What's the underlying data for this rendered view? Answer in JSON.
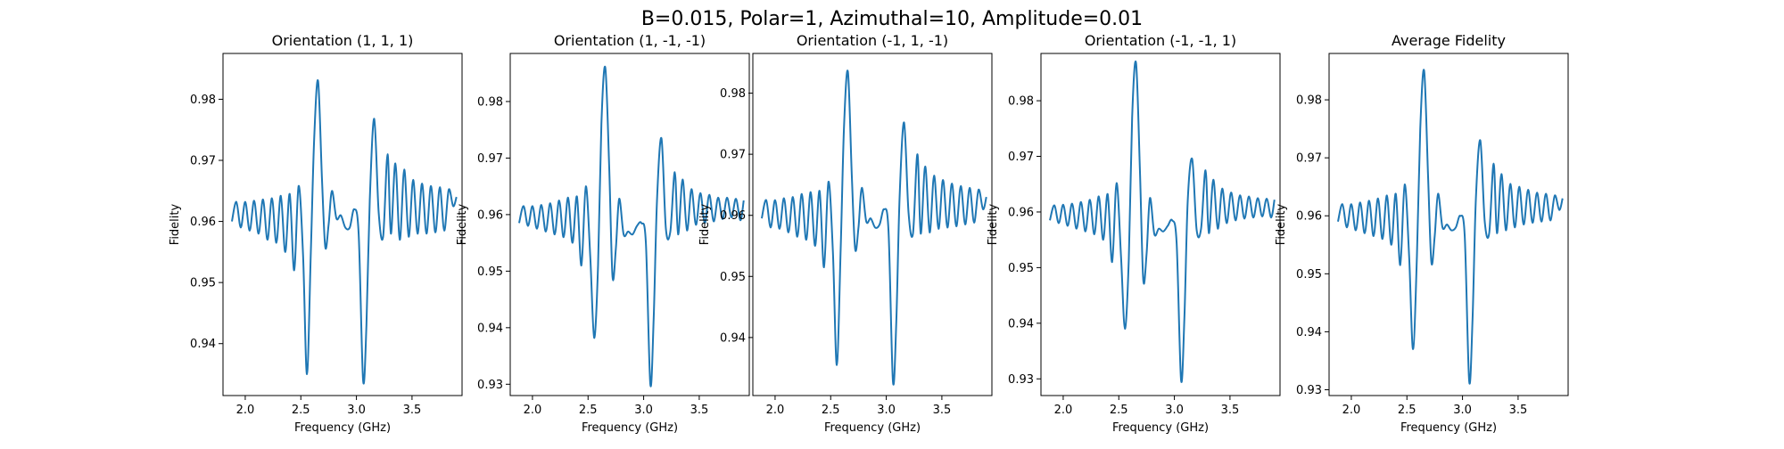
{
  "figure": {
    "suptitle": "B=0.015, Polar=1, Azimuthal=10, Amplitude=0.01"
  },
  "chart_data": [
    {
      "type": "line",
      "title": "Orientation (1, 1, 1)",
      "xlabel": "Frequency (GHz)",
      "ylabel": "Fidelity",
      "xlim": [
        1.8,
        3.95
      ],
      "ylim": [
        0.9315,
        0.9875
      ],
      "xticks": [
        2.0,
        2.5,
        3.0,
        3.5
      ],
      "xtick_labels": [
        "2.0",
        "2.5",
        "3.0",
        "3.5"
      ],
      "yticks": [
        0.94,
        0.95,
        0.96,
        0.97,
        0.98
      ],
      "ytick_labels": [
        "0.94",
        "0.95",
        "0.96",
        "0.97",
        "0.98"
      ],
      "line_color": "#1f77b4",
      "series": [
        {
          "x": [
            1.88,
            1.92,
            1.96,
            2.0,
            2.04,
            2.08,
            2.12,
            2.16,
            2.2,
            2.24,
            2.28,
            2.32,
            2.36,
            2.4,
            2.44,
            2.48,
            2.52,
            2.555,
            2.59,
            2.62,
            2.655,
            2.69,
            2.72,
            2.75,
            2.78,
            2.82,
            2.86,
            2.9,
            2.94,
            2.98,
            3.02,
            3.06,
            3.09,
            3.12,
            3.16,
            3.2,
            3.24,
            3.28,
            3.31,
            3.35,
            3.39,
            3.43,
            3.47,
            3.51,
            3.55,
            3.59,
            3.63,
            3.67,
            3.71,
            3.75,
            3.79,
            3.83,
            3.87,
            3.9
          ],
          "y": [
            0.96,
            0.9632,
            0.959,
            0.9632,
            0.9585,
            0.9634,
            0.958,
            0.9636,
            0.957,
            0.9638,
            0.9565,
            0.9642,
            0.955,
            0.9645,
            0.952,
            0.9658,
            0.9545,
            0.935,
            0.955,
            0.9735,
            0.983,
            0.967,
            0.9558,
            0.9595,
            0.965,
            0.9605,
            0.961,
            0.959,
            0.959,
            0.962,
            0.958,
            0.934,
            0.943,
            0.9635,
            0.9768,
            0.9615,
            0.9575,
            0.971,
            0.958,
            0.9695,
            0.957,
            0.9685,
            0.9575,
            0.9668,
            0.958,
            0.9662,
            0.958,
            0.9658,
            0.9582,
            0.9656,
            0.9585,
            0.9652,
            0.9625,
            0.964
          ]
        }
      ]
    },
    {
      "type": "line",
      "title": "Orientation (1, -1, -1)",
      "xlabel": "Frequency (GHz)",
      "ylabel": "Fidelity",
      "xlim": [
        1.8,
        3.95
      ],
      "ylim": [
        0.928,
        0.9885
      ],
      "xticks": [
        2.0,
        2.5,
        3.0,
        3.5
      ],
      "xtick_labels": [
        "2.0",
        "2.5",
        "3.0",
        "3.5"
      ],
      "yticks": [
        0.93,
        0.94,
        0.95,
        0.96,
        0.97,
        0.98
      ],
      "ytick_labels": [
        "0.93",
        "0.94",
        "0.95",
        "0.96",
        "0.97",
        "0.98"
      ],
      "line_color": "#1f77b4",
      "series": [
        {
          "x": [
            1.88,
            1.92,
            1.96,
            2.0,
            2.04,
            2.08,
            2.12,
            2.16,
            2.2,
            2.24,
            2.28,
            2.32,
            2.36,
            2.4,
            2.44,
            2.48,
            2.52,
            2.555,
            2.59,
            2.62,
            2.655,
            2.69,
            2.72,
            2.75,
            2.78,
            2.82,
            2.86,
            2.9,
            2.94,
            2.98,
            3.02,
            3.06,
            3.09,
            3.12,
            3.16,
            3.2,
            3.24,
            3.28,
            3.31,
            3.35,
            3.39,
            3.43,
            3.47,
            3.51,
            3.55,
            3.59,
            3.63,
            3.67,
            3.71,
            3.75,
            3.79,
            3.83,
            3.87,
            3.9
          ],
          "y": [
            0.9585,
            0.9615,
            0.958,
            0.9615,
            0.9575,
            0.9617,
            0.957,
            0.962,
            0.9565,
            0.9625,
            0.956,
            0.963,
            0.955,
            0.9632,
            0.951,
            0.965,
            0.9525,
            0.9382,
            0.951,
            0.976,
            0.986,
            0.9685,
            0.949,
            0.954,
            0.9628,
            0.9565,
            0.957,
            0.9565,
            0.958,
            0.9585,
            0.955,
            0.93,
            0.9415,
            0.9625,
            0.9735,
            0.9575,
            0.957,
            0.9675,
            0.9565,
            0.9662,
            0.9572,
            0.9645,
            0.9582,
            0.9638,
            0.9585,
            0.9635,
            0.9588,
            0.963,
            0.9592,
            0.963,
            0.9595,
            0.9628,
            0.959,
            0.9625
          ]
        }
      ]
    },
    {
      "type": "line",
      "title": "Orientation (-1, 1, -1)",
      "xlabel": "Frequency (GHz)",
      "ylabel": "Fidelity",
      "xlim": [
        1.8,
        3.95
      ],
      "ylim": [
        0.9305,
        0.9865
      ],
      "xticks": [
        2.0,
        2.5,
        3.0,
        3.5
      ],
      "xtick_labels": [
        "2.0",
        "2.5",
        "3.0",
        "3.5"
      ],
      "yticks": [
        0.94,
        0.95,
        0.96,
        0.97,
        0.98
      ],
      "ytick_labels": [
        "0.94",
        "0.95",
        "0.96",
        "0.97",
        "0.98"
      ],
      "line_color": "#1f77b4",
      "series": [
        {
          "x": [
            1.88,
            1.92,
            1.96,
            2.0,
            2.04,
            2.08,
            2.12,
            2.16,
            2.2,
            2.24,
            2.28,
            2.32,
            2.36,
            2.4,
            2.44,
            2.48,
            2.52,
            2.555,
            2.59,
            2.62,
            2.655,
            2.69,
            2.72,
            2.75,
            2.78,
            2.82,
            2.86,
            2.9,
            2.94,
            2.98,
            3.02,
            3.06,
            3.09,
            3.12,
            3.16,
            3.2,
            3.24,
            3.28,
            3.31,
            3.35,
            3.39,
            3.43,
            3.47,
            3.51,
            3.55,
            3.59,
            3.63,
            3.67,
            3.71,
            3.75,
            3.79,
            3.83,
            3.87,
            3.9
          ],
          "y": [
            0.9595,
            0.9625,
            0.958,
            0.9625,
            0.9578,
            0.9628,
            0.9572,
            0.963,
            0.9565,
            0.9635,
            0.956,
            0.9638,
            0.955,
            0.964,
            0.9515,
            0.9655,
            0.954,
            0.9355,
            0.9545,
            0.9745,
            0.9835,
            0.9665,
            0.9545,
            0.958,
            0.9645,
            0.959,
            0.9595,
            0.958,
            0.9585,
            0.961,
            0.9575,
            0.9328,
            0.9425,
            0.963,
            0.9752,
            0.9605,
            0.957,
            0.97,
            0.957,
            0.968,
            0.9572,
            0.9665,
            0.9578,
            0.9658,
            0.958,
            0.9652,
            0.9582,
            0.9648,
            0.9585,
            0.9645,
            0.9588,
            0.9642,
            0.961,
            0.963
          ]
        }
      ]
    },
    {
      "type": "line",
      "title": "Orientation (-1, -1, 1)",
      "xlabel": "Frequency (GHz)",
      "ylabel": "Fidelity",
      "xlim": [
        1.8,
        3.95
      ],
      "ylim": [
        0.927,
        0.9885
      ],
      "xticks": [
        2.0,
        2.5,
        3.0,
        3.5
      ],
      "xtick_labels": [
        "2.0",
        "2.5",
        "3.0",
        "3.5"
      ],
      "yticks": [
        0.93,
        0.94,
        0.95,
        0.96,
        0.97,
        0.98
      ],
      "ytick_labels": [
        "0.93",
        "0.94",
        "0.95",
        "0.96",
        "0.97",
        "0.98"
      ],
      "line_color": "#1f77b4",
      "series": [
        {
          "x": [
            1.88,
            1.92,
            1.96,
            2.0,
            2.04,
            2.08,
            2.12,
            2.16,
            2.2,
            2.24,
            2.28,
            2.32,
            2.36,
            2.4,
            2.44,
            2.48,
            2.52,
            2.555,
            2.59,
            2.62,
            2.655,
            2.69,
            2.72,
            2.75,
            2.78,
            2.82,
            2.86,
            2.9,
            2.94,
            2.98,
            3.02,
            3.06,
            3.09,
            3.12,
            3.16,
            3.2,
            3.24,
            3.28,
            3.31,
            3.35,
            3.39,
            3.43,
            3.47,
            3.51,
            3.55,
            3.59,
            3.63,
            3.67,
            3.71,
            3.75,
            3.79,
            3.83,
            3.87,
            3.9
          ],
          "y": [
            0.9585,
            0.9612,
            0.958,
            0.9613,
            0.9575,
            0.9615,
            0.957,
            0.9618,
            0.9565,
            0.9622,
            0.956,
            0.9628,
            0.955,
            0.9632,
            0.951,
            0.9652,
            0.952,
            0.939,
            0.9515,
            0.977,
            0.9868,
            0.9675,
            0.9478,
            0.9525,
            0.9625,
            0.956,
            0.957,
            0.9565,
            0.9575,
            0.9585,
            0.9545,
            0.9298,
            0.941,
            0.962,
            0.9695,
            0.9568,
            0.957,
            0.9675,
            0.9562,
            0.9658,
            0.957,
            0.9642,
            0.958,
            0.9635,
            0.9585,
            0.963,
            0.9588,
            0.9628,
            0.959,
            0.9625,
            0.9592,
            0.9624,
            0.959,
            0.9622
          ]
        }
      ]
    },
    {
      "type": "line",
      "title": "Average Fidelity",
      "xlabel": "Frequency (GHz)",
      "ylabel": "Fidelity",
      "xlim": [
        1.8,
        3.95
      ],
      "ylim": [
        0.929,
        0.988
      ],
      "xticks": [
        2.0,
        2.5,
        3.0,
        3.5
      ],
      "xtick_labels": [
        "2.0",
        "2.5",
        "3.0",
        "3.5"
      ],
      "yticks": [
        0.93,
        0.94,
        0.95,
        0.96,
        0.97,
        0.98
      ],
      "ytick_labels": [
        "0.93",
        "0.94",
        "0.95",
        "0.96",
        "0.97",
        "0.98"
      ],
      "line_color": "#1f77b4",
      "series": [
        {
          "x": [
            1.88,
            1.92,
            1.96,
            2.0,
            2.04,
            2.08,
            2.12,
            2.16,
            2.2,
            2.24,
            2.28,
            2.32,
            2.36,
            2.4,
            2.44,
            2.48,
            2.52,
            2.555,
            2.59,
            2.62,
            2.655,
            2.69,
            2.72,
            2.75,
            2.78,
            2.82,
            2.86,
            2.9,
            2.94,
            2.98,
            3.02,
            3.06,
            3.09,
            3.12,
            3.16,
            3.2,
            3.24,
            3.28,
            3.31,
            3.35,
            3.39,
            3.43,
            3.47,
            3.51,
            3.55,
            3.59,
            3.63,
            3.67,
            3.71,
            3.75,
            3.79,
            3.83,
            3.87,
            3.9
          ],
          "y": [
            0.959,
            0.962,
            0.958,
            0.962,
            0.9575,
            0.9623,
            0.957,
            0.9626,
            0.9565,
            0.963,
            0.956,
            0.9635,
            0.955,
            0.9638,
            0.9515,
            0.9654,
            0.953,
            0.937,
            0.953,
            0.975,
            0.985,
            0.967,
            0.952,
            0.9565,
            0.9638,
            0.958,
            0.9585,
            0.9575,
            0.958,
            0.96,
            0.9565,
            0.9315,
            0.942,
            0.9628,
            0.973,
            0.959,
            0.957,
            0.969,
            0.957,
            0.9672,
            0.9575,
            0.9655,
            0.958,
            0.965,
            0.9585,
            0.9645,
            0.9588,
            0.964,
            0.959,
            0.9638,
            0.9592,
            0.9635,
            0.961,
            0.963
          ]
        }
      ]
    }
  ]
}
